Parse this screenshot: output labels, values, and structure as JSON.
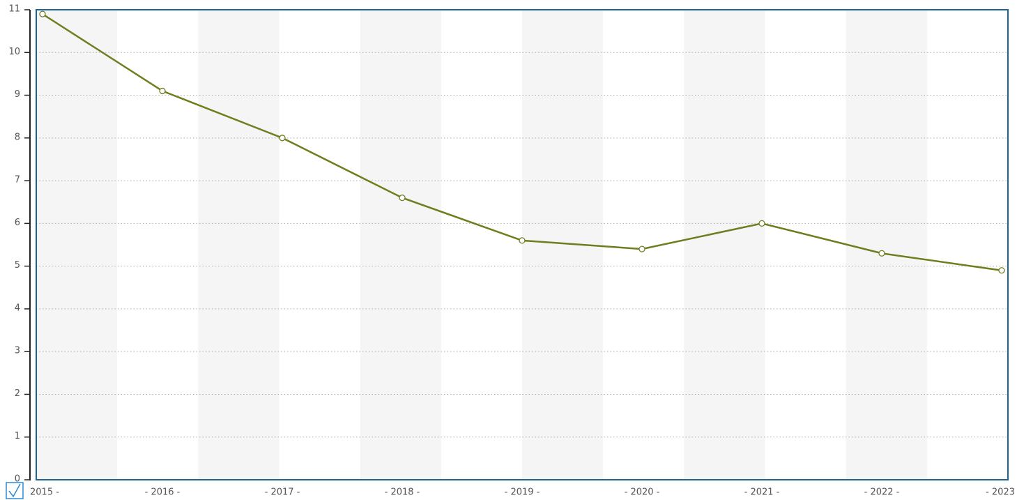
{
  "chart_data": {
    "type": "line",
    "categories": [
      "2015 -",
      "- 2016 -",
      "- 2017 -",
      "- 2018 -",
      "- 2019 -",
      "- 2020 -",
      "- 2021 -",
      "- 2022 -",
      "- 2023"
    ],
    "series": [
      {
        "color": "#6b7f1e",
        "values": [
          10.9,
          9.1,
          8.0,
          6.6,
          5.6,
          5.4,
          6.0,
          5.3,
          4.9
        ]
      }
    ],
    "ylim": [
      0,
      11
    ],
    "yticks": [
      0,
      1,
      2,
      3,
      4,
      5,
      6,
      7,
      8,
      9,
      10,
      11
    ],
    "grid": true
  }
}
